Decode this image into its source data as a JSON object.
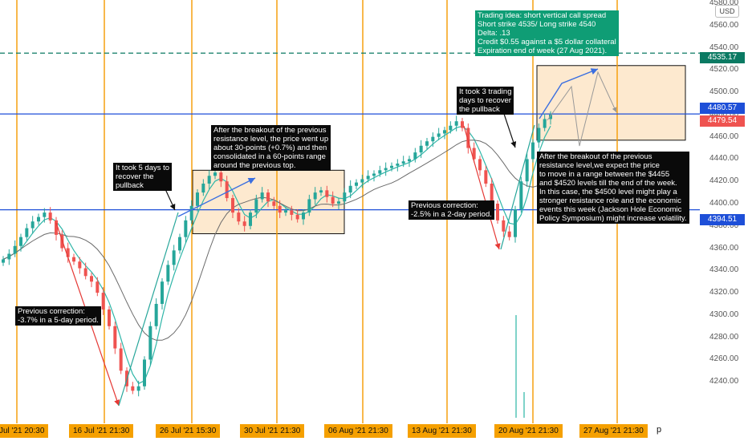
{
  "currency": "USD",
  "y_ticks": [
    "4580.00",
    "4560.00",
    "4540.00",
    "4520.00",
    "4500.00",
    "4480.00",
    "4460.00",
    "4440.00",
    "4420.00",
    "4400.00",
    "4380.00",
    "4360.00",
    "4340.00",
    "4320.00",
    "4300.00",
    "4280.00",
    "4260.00",
    "4240.00"
  ],
  "price_tags": {
    "target": "4535.17",
    "upper": "4480.57",
    "last": "4479.54",
    "support": "4394.51"
  },
  "x_ticks": [
    "Jul '21  20:30",
    "16 Jul '21  21:30",
    "26 Jul '21  15:30",
    "30 Jul '21  21:30",
    "06 Aug '21  21:30",
    "13 Aug '21  21:30",
    "20 Aug '21  21:30",
    "27 Aug '21  21:30"
  ],
  "x_axis_suffix": "p",
  "notes": {
    "trade_idea": "Trading idea: short vertical call spread\nShort strike 4535/ Long strike 4540\nDelta: .13\nCredit $0.55 against a $5 dollar collateral\nExpiration end of week (27 Aug 2021).",
    "breakout_future": "After the breakout of the previous\nresistance level,we expect the price\nto move in a range between the $4455\nand $4520 levels till the end of the week.\nIn this case, the $4500 level might play a\nstronger resistance role and the economic\nevents this week (Jackson Hole Economic\nPolicy Symposium) might increase volatility.",
    "breakout_past": "After the breakout of the previous\nresistance level, the price went up\nabout 30-points (+0.7%) and then\nconsolidated in a 60-points range\naround the previous top.",
    "recover_5days": "It took 5 days to\nrecover the\npullback",
    "recover_3days": "It took 3 trading\ndays to recover\nthe pullback",
    "correction_3_7": "Previous correction:\n-3.7% in a 5-day period.",
    "correction_2_5": "Previous correction:\n-2.5% in a 2-day period."
  },
  "colors": {
    "up": "#26a69a",
    "down": "#ef5350",
    "session": "#f59a00",
    "level": "#1e4fd8",
    "target": "#0b7a63",
    "box": "#fde9cf",
    "ma_fast": "#2fb6a8",
    "ma_slow": "#6b6b6b",
    "arrow": "#3b6fe0"
  },
  "chart_data": {
    "type": "candlestick",
    "y_range": [
      4220,
      4580
    ],
    "levels": {
      "support": 4394.51,
      "upper": 4480.57,
      "last": 4479.54,
      "target": 4535.17
    },
    "consolidation_range": [
      4373,
      4430
    ],
    "forecast_range": [
      4457,
      4524
    ],
    "close_path": [
      4350,
      4355,
      4362,
      4370,
      4378,
      4384,
      4388,
      4392,
      4385,
      4372,
      4360,
      4352,
      4348,
      4342,
      4335,
      4330,
      4320,
      4305,
      4290,
      4270,
      4250,
      4236,
      4232,
      4236,
      4260,
      4290,
      4310,
      4330,
      4345,
      4358,
      4370,
      4385,
      4398,
      4410,
      4418,
      4425,
      4428,
      4420,
      4405,
      4392,
      4384,
      4380,
      4392,
      4404,
      4410,
      4402,
      4398,
      4392,
      4394,
      4390,
      4386,
      4392,
      4404,
      4410,
      4412,
      4406,
      4400,
      4402,
      4410,
      4416,
      4419,
      4422,
      4425,
      4427,
      4430,
      4432,
      4434,
      4436,
      4438,
      4440,
      4446,
      4452,
      4456,
      4460,
      4463,
      4466,
      4470,
      4474,
      4468,
      4450,
      4440,
      4430,
      4418,
      4400,
      4385,
      4375,
      4370,
      4395,
      4420,
      4440,
      4455,
      4468,
      4476,
      4480
    ]
  }
}
